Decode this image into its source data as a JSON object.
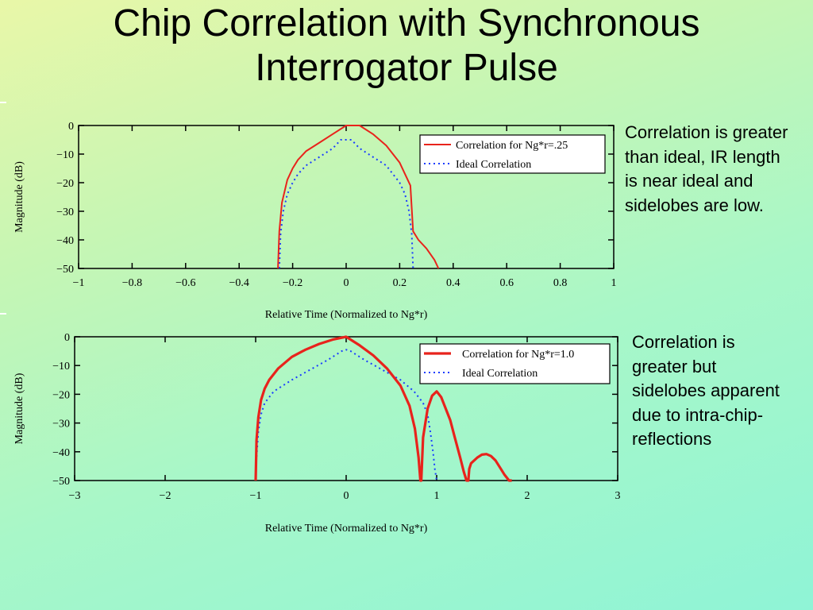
{
  "slide": {
    "title_line1": "Chip Correlation with Synchronous",
    "title_line2": "Interrogator Pulse",
    "note1": "Correlation is greater than ideal, IR length is near ideal and sidelobes are low.",
    "note2": "Correlation is greater but sidelobes apparent due to intra-chip-reflections"
  },
  "chart_data": [
    {
      "type": "line",
      "xlabel": "Relative Time (Normalized to Ng*r)",
      "ylabel": "Magnitude (dB)",
      "xlim": [
        -1,
        1
      ],
      "ylim": [
        -50,
        0
      ],
      "xticks": [
        -1,
        -0.8,
        -0.6,
        -0.4,
        -0.2,
        0,
        0.2,
        0.4,
        0.6,
        0.8,
        1
      ],
      "xtick_labels": [
        "−1",
        "−0.8",
        "−0.6",
        "−0.4",
        "−0.2",
        "0",
        "0.2",
        "0.4",
        "0.6",
        "0.8",
        "1"
      ],
      "yticks": [
        0,
        -10,
        -20,
        -30,
        -40,
        -50
      ],
      "ytick_labels": [
        "0",
        "−10",
        "−20",
        "−30",
        "−40",
        "−50"
      ],
      "legend_position": "top-right",
      "series": [
        {
          "name": "Correlation for Ng*r=.25",
          "color": "#e8231c",
          "style": "solid-dashed",
          "x": [
            -0.255,
            -0.25,
            -0.24,
            -0.22,
            -0.2,
            -0.18,
            -0.15,
            -0.1,
            -0.05,
            0,
            0.05,
            0.1,
            0.15,
            0.2,
            0.24,
            0.25,
            0.27,
            0.3,
            0.33,
            0.345
          ],
          "y": [
            -50,
            -37,
            -27,
            -19,
            -15,
            -12,
            -9,
            -6,
            -3,
            0,
            0,
            -3,
            -7,
            -13,
            -21,
            -37,
            -40,
            -43,
            -47,
            -50
          ]
        },
        {
          "name": "Ideal Correlation",
          "color": "#1a3cff",
          "style": "dotted",
          "x": [
            -0.25,
            -0.245,
            -0.235,
            -0.22,
            -0.2,
            -0.18,
            -0.15,
            -0.1,
            -0.05,
            -0.02,
            0.02,
            0.05,
            0.1,
            0.15,
            0.2,
            0.22,
            0.235,
            0.245,
            0.25
          ],
          "y": [
            -50,
            -38,
            -30,
            -24,
            -20,
            -17,
            -14,
            -11,
            -8,
            -5,
            -5,
            -8,
            -11,
            -14,
            -20,
            -24,
            -30,
            -38,
            -50
          ]
        }
      ]
    },
    {
      "type": "line",
      "xlabel": "Relative Time (Normalized to Ng*r)",
      "ylabel": "Magnitude (dB)",
      "xlim": [
        -3,
        3
      ],
      "ylim": [
        -50,
        0
      ],
      "xticks": [
        -3,
        -2,
        -1,
        0,
        1,
        2,
        3
      ],
      "xtick_labels": [
        "−3",
        "−2",
        "−1",
        "0",
        "1",
        "2",
        "3"
      ],
      "yticks": [
        0,
        -10,
        -20,
        -30,
        -40,
        -50
      ],
      "ytick_labels": [
        "0",
        "−10",
        "−20",
        "−30",
        "−40",
        "−50"
      ],
      "legend_position": "top-right",
      "series": [
        {
          "name": "Correlation for Ng*r=1.0",
          "color": "#e8231c",
          "style": "solid-thick",
          "x": [
            -1.0,
            -0.99,
            -0.97,
            -0.94,
            -0.9,
            -0.85,
            -0.75,
            -0.6,
            -0.45,
            -0.3,
            -0.15,
            0,
            0.15,
            0.3,
            0.45,
            0.6,
            0.7,
            0.76,
            0.8,
            0.82,
            0.83,
            0.85,
            0.9,
            0.95,
            1.0,
            1.05,
            1.1,
            1.15,
            1.2,
            1.26,
            1.3,
            1.33,
            1.35,
            1.36,
            1.38,
            1.45,
            1.5,
            1.55,
            1.6,
            1.65,
            1.7,
            1.75,
            1.8,
            1.83
          ],
          "y": [
            -50,
            -36,
            -28,
            -22,
            -18,
            -15,
            -11,
            -7,
            -4.5,
            -2.5,
            -1,
            0,
            -3,
            -6.5,
            -11,
            -17,
            -24,
            -32,
            -42,
            -50,
            -50,
            -35,
            -25,
            -20.5,
            -19,
            -21,
            -25,
            -29,
            -35,
            -42,
            -47,
            -50,
            -50,
            -46,
            -44,
            -42,
            -41,
            -40.8,
            -41.5,
            -43,
            -45.5,
            -48,
            -50,
            -50
          ],
          "legend_position_ref": "top-right"
        },
        {
          "name": "Ideal Correlation",
          "color": "#1a3cff",
          "style": "dotted",
          "x": [
            -1.0,
            -0.99,
            -0.97,
            -0.94,
            -0.9,
            -0.8,
            -0.6,
            -0.4,
            -0.2,
            -0.05,
            0,
            0.05,
            0.2,
            0.4,
            0.6,
            0.75,
            0.85,
            0.9,
            0.93,
            0.96,
            0.98,
            1.0
          ],
          "y": [
            -50,
            -42,
            -33,
            -27,
            -23,
            -19,
            -15,
            -11.5,
            -8,
            -5,
            -4.5,
            -5,
            -8,
            -11.5,
            -15,
            -19,
            -23,
            -27,
            -33,
            -40,
            -46,
            -50
          ]
        }
      ]
    }
  ]
}
